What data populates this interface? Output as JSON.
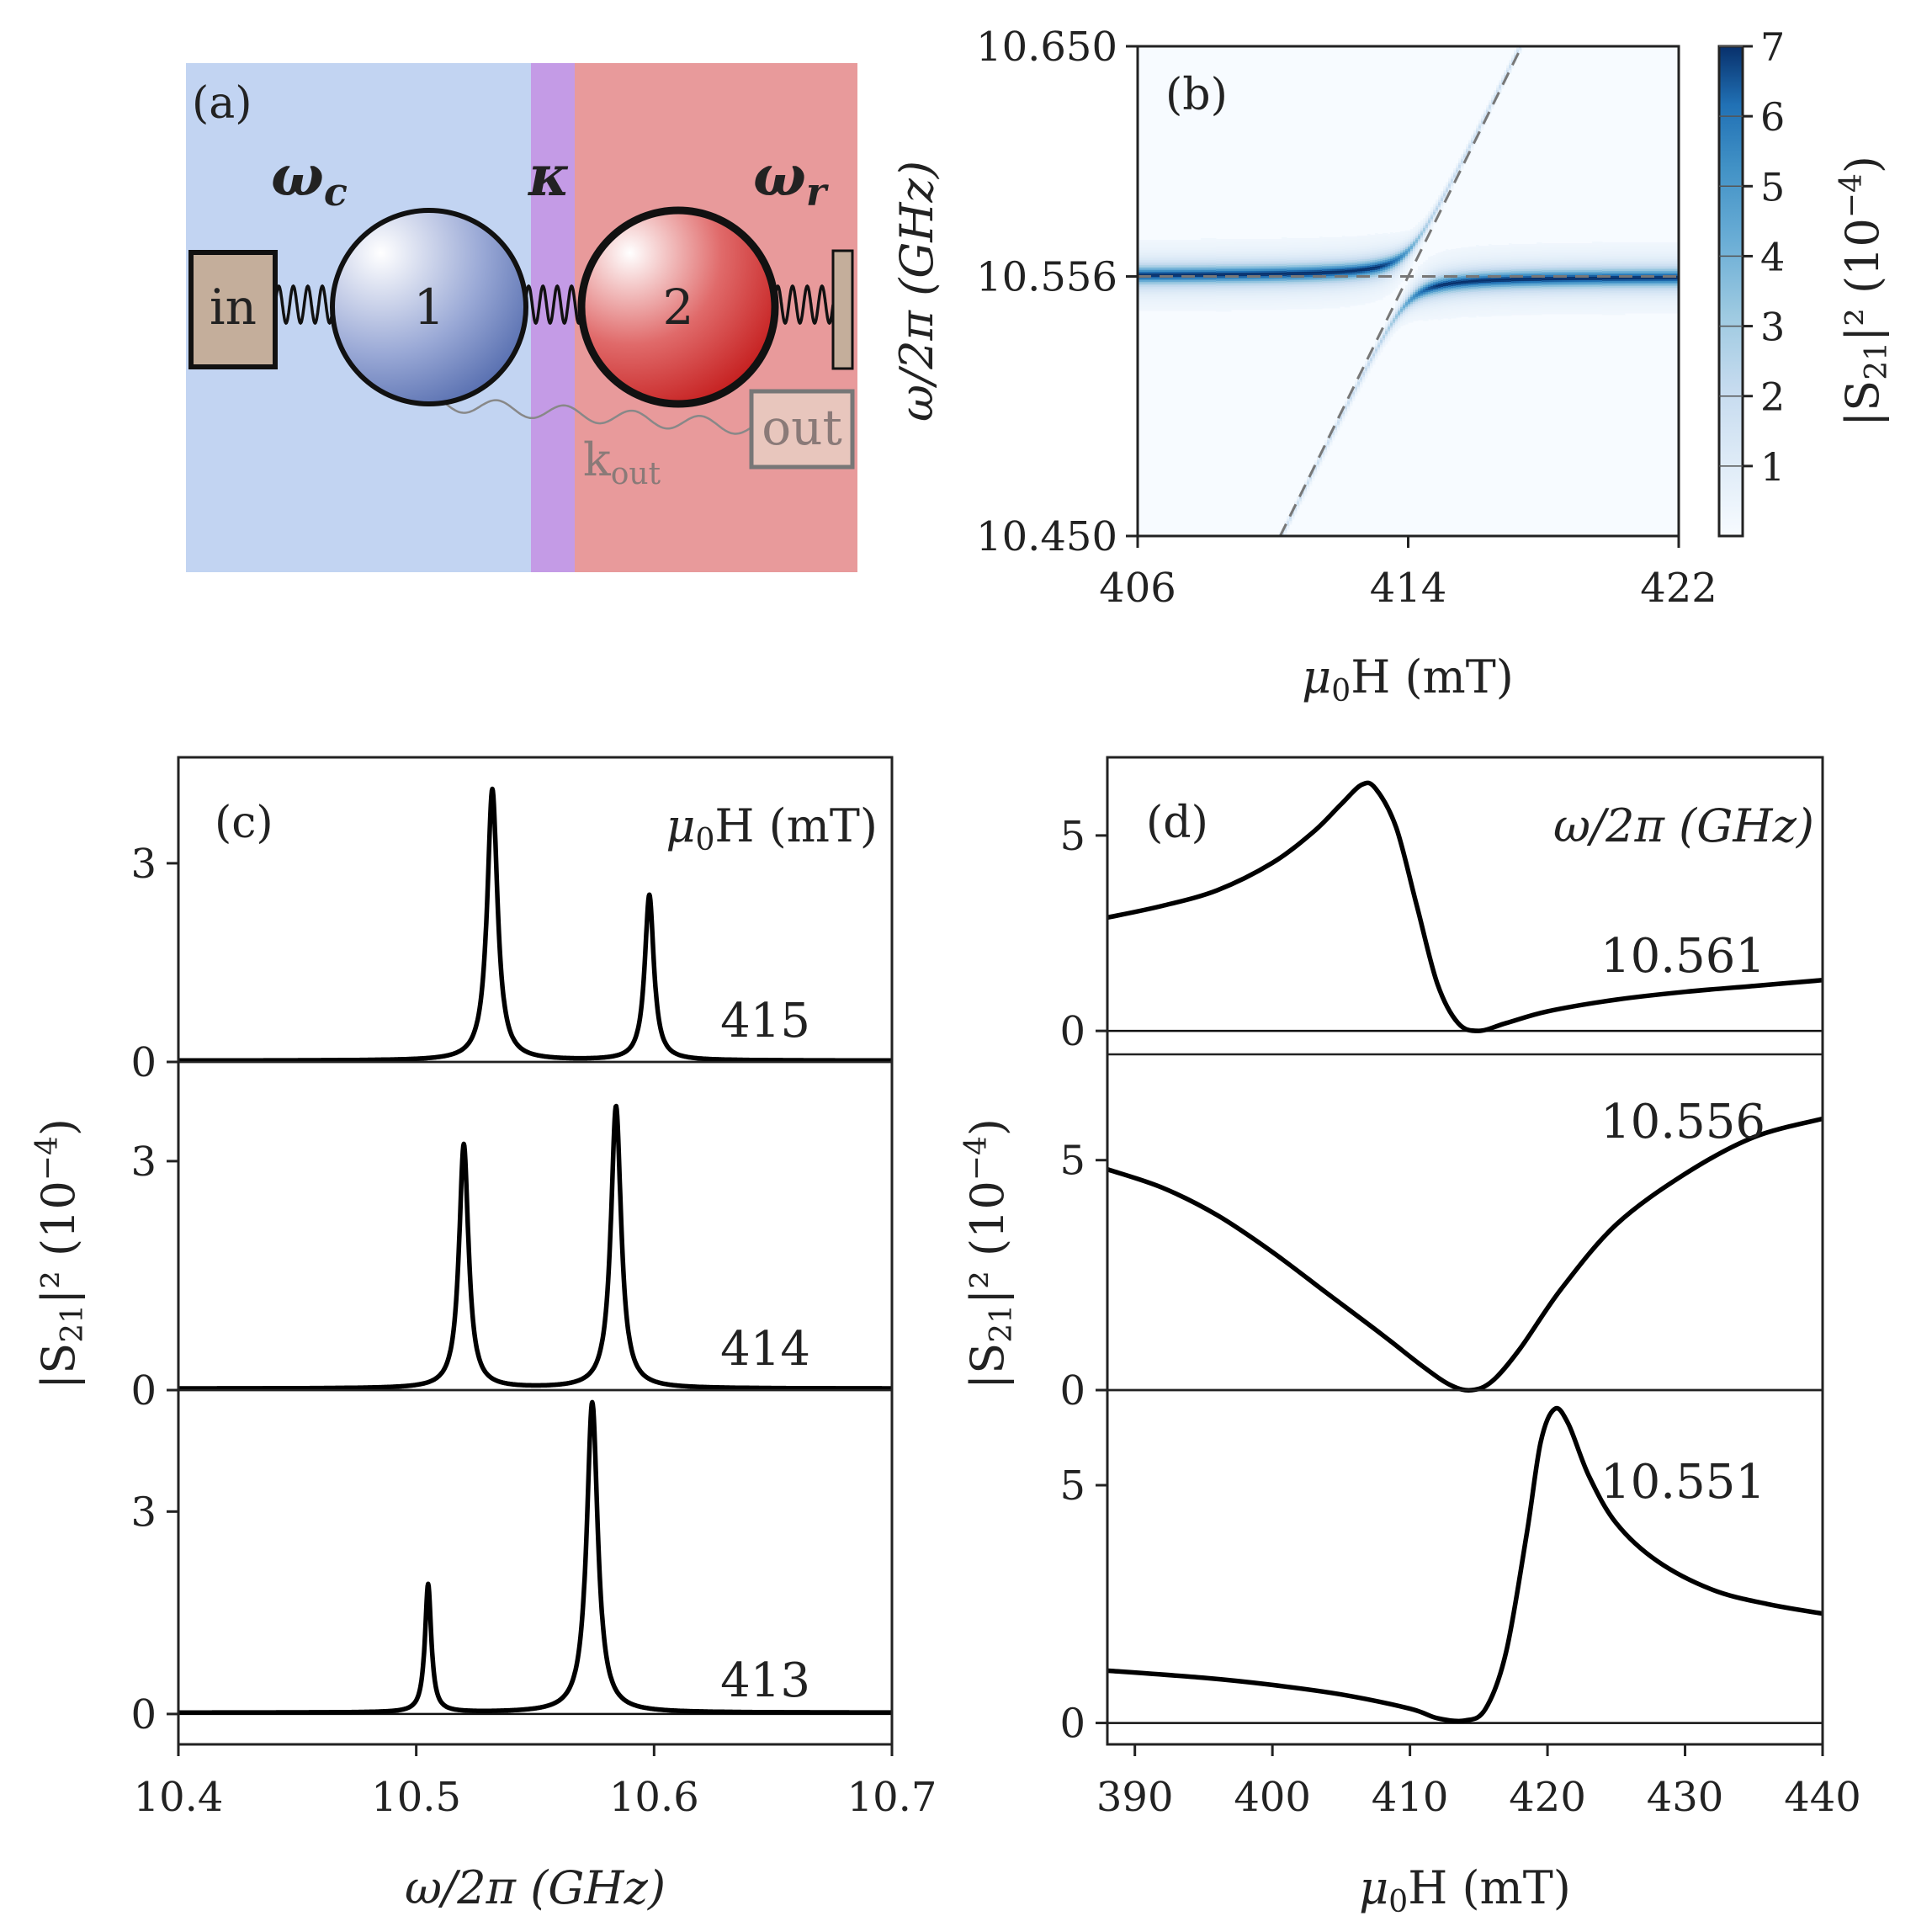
{
  "panel_a": {
    "label": "(a)",
    "omega_c": "ω",
    "omega_c_sub": "c",
    "kappa": "κ",
    "omega_r": "ω",
    "omega_r_sub": "r",
    "in_label": "in",
    "out_label": "out",
    "mode1": "1",
    "mode2": "2",
    "k_out": "k",
    "k_out_sub": "out",
    "colors": {
      "left": "#c2d4f2",
      "middle": "#c49be6",
      "right": "#e89a9b",
      "box": "#c4ae9b"
    }
  },
  "colorbar": {
    "ticks": [
      "1",
      "2",
      "3",
      "4",
      "5",
      "6",
      "7"
    ],
    "label_main": "|S",
    "label_sub": "21",
    "label_tail": "|² (10",
    "label_exp": "−4",
    "label_close": ")",
    "colormap": "Blues"
  },
  "axis_text": {
    "b_ylabel": "ω/2π (GHz)",
    "b_xlabel_mu": "μ",
    "b_xlabel_sub": "0",
    "b_xlabel_tail": "H (mT)",
    "c_xlabel": "ω/2π (GHz)",
    "d_xlabel_mu": "μ",
    "d_xlabel_sub": "0",
    "d_xlabel_tail": "H (mT)",
    "s21_main": "|S",
    "s21_sub": "21",
    "s21_tail": "|² (10",
    "s21_exp": "−4",
    "s21_close": ")",
    "c_legend_mu": "μ",
    "c_legend_sub": "0",
    "c_legend_tail": "H (mT)",
    "d_legend": "ω/2π (GHz)"
  },
  "chart_data": [
    {
      "id": "b",
      "type": "heatmap",
      "label": "(b)",
      "x_ticks": [
        "406",
        "414",
        "422"
      ],
      "y_ticks": [
        "10.450",
        "10.556",
        "10.650"
      ],
      "xlim": [
        406,
        422
      ],
      "ylim": [
        10.45,
        10.65
      ],
      "colorbar_range": [
        0,
        7
      ],
      "cavity_frequency": 10.556,
      "crossing_field": 414,
      "magnon_slope_GHz_per_mT": 0.028,
      "coupling_GHz": 0.0105
    },
    {
      "id": "c",
      "type": "line",
      "label": "(c)",
      "x_ticks": [
        "10.4",
        "10.5",
        "10.6",
        "10.7"
      ],
      "y_ticks": [
        "0",
        "3"
      ],
      "xlim": [
        10.4,
        10.7
      ],
      "series": [
        {
          "name": "415",
          "peaks": [
            {
              "x": 10.532,
              "height": 4.1,
              "width": 0.0026
            },
            {
              "x": 10.598,
              "height": 2.5,
              "width": 0.0023
            }
          ],
          "ylim": [
            0,
            4.6
          ]
        },
        {
          "name": "414",
          "peaks": [
            {
              "x": 10.52,
              "height": 3.2,
              "width": 0.0024
            },
            {
              "x": 10.584,
              "height": 3.7,
              "width": 0.0026
            }
          ],
          "ylim": [
            0,
            4.3
          ]
        },
        {
          "name": "413",
          "peaks": [
            {
              "x": 10.505,
              "height": 1.9,
              "width": 0.0016
            },
            {
              "x": 10.574,
              "height": 4.6,
              "width": 0.0028
            }
          ],
          "ylim": [
            -0.45,
            4.8
          ]
        }
      ]
    },
    {
      "id": "d",
      "type": "line",
      "label": "(d)",
      "x_ticks": [
        "390",
        "400",
        "410",
        "420",
        "430",
        "440"
      ],
      "y_ticks": [
        "0",
        "5"
      ],
      "xlim": [
        388,
        440
      ],
      "series": [
        {
          "name": "10.561",
          "x": [
            388,
            392,
            396,
            400,
            403,
            405,
            406.5,
            407.5,
            409,
            410.5,
            412,
            413.5,
            415,
            417,
            420,
            425,
            430,
            435,
            440
          ],
          "y": [
            2.9,
            3.2,
            3.6,
            4.3,
            5.1,
            5.8,
            6.3,
            6.2,
            5.2,
            3.2,
            1.2,
            0.2,
            0.0,
            0.2,
            0.5,
            0.8,
            1.0,
            1.15,
            1.3
          ],
          "ylim": [
            -0.6,
            7.0
          ]
        },
        {
          "name": "10.556",
          "x": [
            388,
            392,
            396,
            400,
            404,
            408,
            411,
            413,
            414.5,
            416,
            418,
            421,
            425,
            430,
            435,
            440
          ],
          "y": [
            4.8,
            4.4,
            3.8,
            3.0,
            2.1,
            1.2,
            0.5,
            0.1,
            0.0,
            0.2,
            0.9,
            2.2,
            3.6,
            4.7,
            5.5,
            5.9
          ],
          "ylim": [
            0,
            7.3
          ]
        },
        {
          "name": "10.551",
          "x": [
            388,
            395,
            400,
            405,
            410,
            412,
            414,
            415.5,
            417,
            418.5,
            419.5,
            420.5,
            421.5,
            423,
            425,
            428,
            432,
            436,
            440
          ],
          "y": [
            1.1,
            0.95,
            0.8,
            0.6,
            0.3,
            0.1,
            0.05,
            0.3,
            1.5,
            4.0,
            5.9,
            6.6,
            6.3,
            5.2,
            4.2,
            3.4,
            2.8,
            2.5,
            2.3
          ],
          "ylim": [
            -0.45,
            7.0
          ]
        }
      ]
    }
  ]
}
